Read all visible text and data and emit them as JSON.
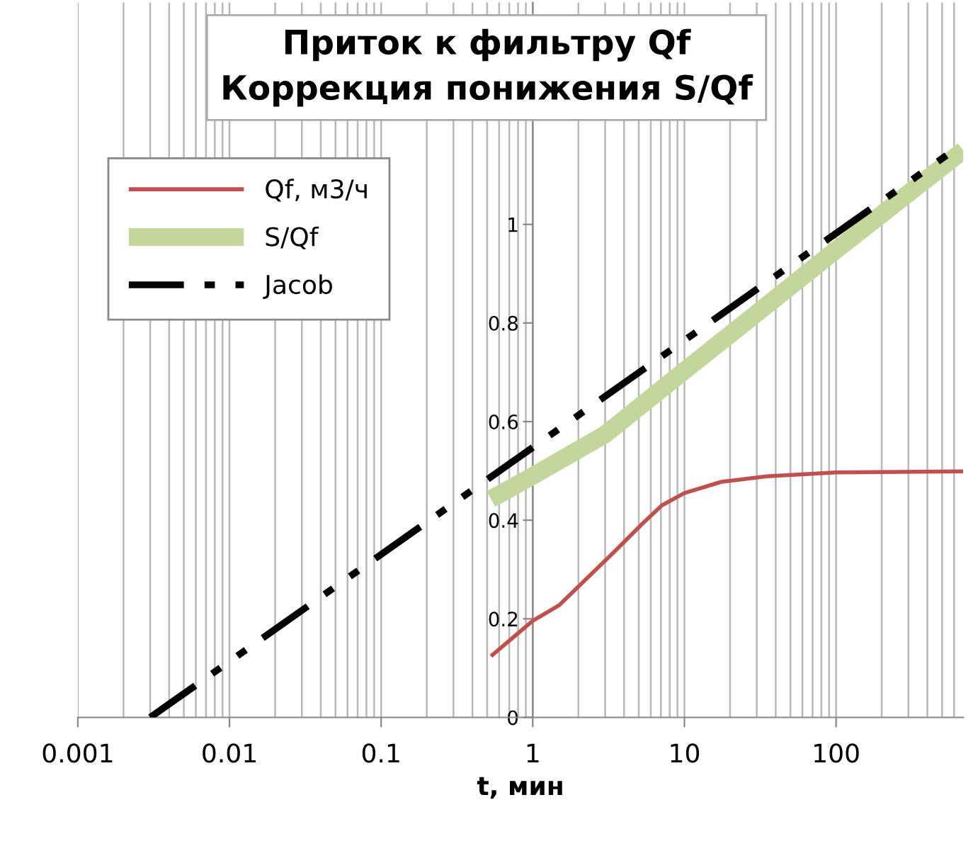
{
  "chart_data": {
    "type": "line",
    "title": "Приток к фильтру Qf\nКоррекция понижения S/Qf",
    "xlabel": "t, мин",
    "log": "x",
    "grid": "x",
    "legend": "top left",
    "xlim": [
      0.001,
      690
    ],
    "xticks": [
      0.001,
      0.01,
      0.1,
      1,
      10,
      100
    ],
    "ylim": [
      0,
      1.45
    ],
    "yticks": [
      0,
      0.2,
      0.4,
      0.6,
      0.8,
      1
    ],
    "series": [
      {
        "name": "Qf, м3/ч",
        "color": "#c0504d",
        "x": [
          0.53,
          1,
          1.5,
          3.4,
          5.2,
          7.1,
          10,
          17.6,
          35,
          100,
          690
        ],
        "values": [
          0.124,
          0.196,
          0.228,
          0.334,
          0.391,
          0.43,
          0.455,
          0.478,
          0.489,
          0.497,
          0.499
        ]
      },
      {
        "name": "S/Qf",
        "color": "#c3d69b",
        "x": [
          0.53,
          1,
          3,
          10,
          100,
          690
        ],
        "values": [
          0.443,
          0.49,
          0.574,
          0.703,
          0.948,
          1.15
        ]
      },
      {
        "name": "Jacob",
        "color": "#000000",
        "line_style": "dashdotdot",
        "x": [
          0.003,
          535
        ],
        "values": [
          0,
          1.14
        ]
      }
    ]
  }
}
